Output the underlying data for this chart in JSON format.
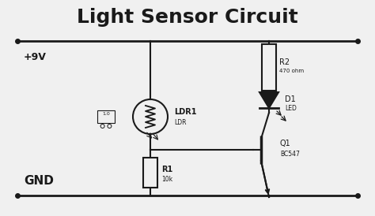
{
  "title": "Light Sensor Circuit",
  "title_fontsize": 18,
  "title_fontweight": "bold",
  "bg_color": "#f0f0f0",
  "line_color": "#1a1a1a",
  "line_width": 1.5,
  "vcc_label": "+9V",
  "gnd_label": "GND",
  "ldr_label": "LDR1",
  "ldr_sublabel": "LDR",
  "r1_label": "R1",
  "r1_sublabel": "10k",
  "r2_label": "R2",
  "r2_sublabel": "470 ohm",
  "d1_label": "D1",
  "d1_sublabel": "LED",
  "q1_label": "Q1",
  "q1_sublabel": "BC547",
  "small_box_label": "1.0"
}
